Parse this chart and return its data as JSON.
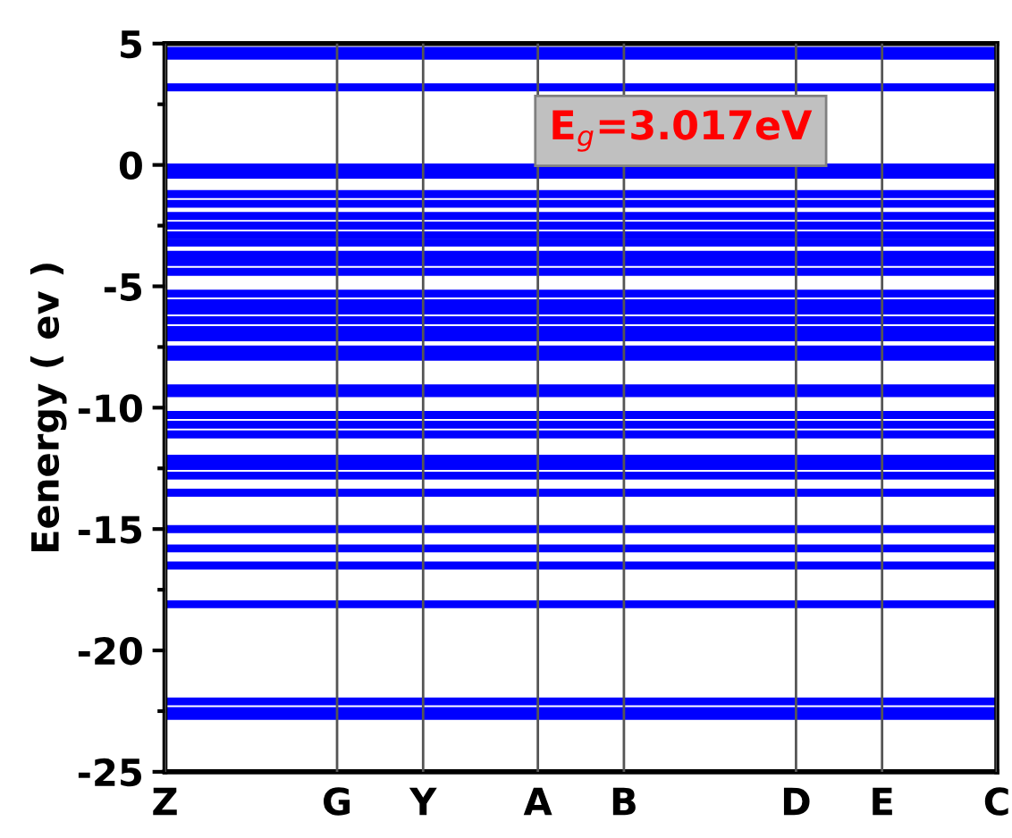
{
  "chart_data": {
    "type": "line",
    "ylabel": "Eenergy ( ev )",
    "annotations": [
      "E$_{g}$=3.017eV"
    ],
    "categories": [
      "Z",
      null,
      null,
      null,
      null,
      null,
      "G",
      null,
      null,
      "Y",
      null,
      null,
      null,
      "A",
      null,
      null,
      "B",
      null,
      null,
      null,
      null,
      null,
      "D",
      null,
      null,
      "E",
      null,
      null,
      null,
      "C"
    ],
    "ylim": [
      -25,
      5
    ],
    "yticks": [
      5,
      0,
      -5,
      -10,
      -15,
      -20,
      -25
    ],
    "grid": "x",
    "marker": "none",
    "line_style": "solid",
    "series": [
      {
        "color": "#0000ff",
        "values": [
          4.5,
          4.5,
          4.5,
          4.5,
          4.5,
          4.5,
          4.5,
          4.5,
          4.5,
          4.5,
          4.5,
          4.5,
          4.5,
          4.5,
          4.5,
          4.5,
          4.5,
          4.5,
          4.5,
          4.5,
          4.5,
          4.5,
          4.5,
          4.5,
          4.5,
          4.5,
          4.5,
          4.5,
          4.5,
          4.5
        ]
      },
      {
        "color": "#0000ff",
        "values": [
          4.7,
          4.7,
          4.7,
          4.7,
          4.7,
          4.7,
          4.7,
          4.7,
          4.7,
          4.7,
          4.7,
          4.7,
          4.7,
          4.7,
          4.7,
          4.7,
          4.7,
          4.7,
          4.7,
          4.7,
          4.7,
          4.7,
          4.7,
          4.7,
          4.7,
          4.7,
          4.7,
          4.7,
          4.7,
          4.7
        ]
      },
      {
        "color": "#0000ff",
        "values": [
          3.2,
          3.2,
          3.2,
          3.2,
          3.2,
          3.2,
          3.2,
          3.2,
          3.2,
          3.2,
          3.2,
          3.2,
          3.2,
          3.2,
          3.2,
          3.2,
          3.2,
          3.2,
          3.2,
          3.2,
          3.2,
          3.2,
          3.2,
          3.2,
          3.2,
          3.2,
          3.2,
          3.2,
          3.2,
          3.2
        ]
      },
      {
        "color": "#0000ff",
        "values": [
          -0.1,
          -0.1,
          -0.1,
          -0.1,
          -0.1,
          -0.1,
          -0.1,
          -0.1,
          -0.1,
          -0.1,
          -0.1,
          -0.1,
          -0.1,
          -0.1,
          -0.1,
          -0.1,
          -0.1,
          -0.1,
          -0.1,
          -0.1,
          -0.1,
          -0.1,
          -0.1,
          -0.1,
          -0.1,
          -0.1,
          -0.1,
          -0.1,
          -0.1,
          -0.1
        ]
      },
      {
        "color": "#0000ff",
        "values": [
          -0.4,
          -0.4,
          -0.4,
          -0.4,
          -0.4,
          -0.4,
          -0.4,
          -0.4,
          -0.4,
          -0.4,
          -0.4,
          -0.4,
          -0.4,
          -0.4,
          -0.4,
          -0.4,
          -0.4,
          -0.4,
          -0.4,
          -0.4,
          -0.4,
          -0.4,
          -0.4,
          -0.4,
          -0.4,
          -0.4,
          -0.4,
          -0.4,
          -0.4,
          -0.4
        ]
      },
      {
        "color": "#0000ff",
        "values": [
          -1.2,
          -1.2,
          -1.2,
          -1.2,
          -1.2,
          -1.2,
          -1.2,
          -1.2,
          -1.2,
          -1.2,
          -1.2,
          -1.2,
          -1.2,
          -1.2,
          -1.2,
          -1.2,
          -1.2,
          -1.2,
          -1.2,
          -1.2,
          -1.2,
          -1.2,
          -1.2,
          -1.2,
          -1.2,
          -1.2,
          -1.2,
          -1.2,
          -1.2,
          -1.2
        ]
      },
      {
        "color": "#0000ff",
        "values": [
          -1.6,
          -1.6,
          -1.6,
          -1.6,
          -1.6,
          -1.6,
          -1.6,
          -1.6,
          -1.6,
          -1.6,
          -1.6,
          -1.6,
          -1.6,
          -1.6,
          -1.6,
          -1.6,
          -1.6,
          -1.6,
          -1.6,
          -1.6,
          -1.6,
          -1.6,
          -1.6,
          -1.6,
          -1.6,
          -1.6,
          -1.6,
          -1.6,
          -1.6,
          -1.6
        ]
      },
      {
        "color": "#0000ff",
        "values": [
          -2.1,
          -2.1,
          -2.1,
          -2.1,
          -2.1,
          -2.1,
          -2.1,
          -2.1,
          -2.1,
          -2.1,
          -2.1,
          -2.1,
          -2.1,
          -2.1,
          -2.1,
          -2.1,
          -2.1,
          -2.1,
          -2.1,
          -2.1,
          -2.1,
          -2.1,
          -2.1,
          -2.1,
          -2.1,
          -2.1,
          -2.1,
          -2.1,
          -2.1,
          -2.1
        ]
      },
      {
        "color": "#0000ff",
        "values": [
          -2.5,
          -2.5,
          -2.5,
          -2.5,
          -2.5,
          -2.5,
          -2.5,
          -2.5,
          -2.5,
          -2.5,
          -2.5,
          -2.5,
          -2.5,
          -2.5,
          -2.5,
          -2.5,
          -2.5,
          -2.5,
          -2.5,
          -2.5,
          -2.5,
          -2.5,
          -2.5,
          -2.5,
          -2.5,
          -2.5,
          -2.5,
          -2.5,
          -2.5,
          -2.5
        ]
      },
      {
        "color": "#0000ff",
        "values": [
          -2.9,
          -2.9,
          -2.9,
          -2.9,
          -2.9,
          -2.9,
          -2.9,
          -2.9,
          -2.9,
          -2.9,
          -2.9,
          -2.9,
          -2.9,
          -2.9,
          -2.9,
          -2.9,
          -2.9,
          -2.9,
          -2.9,
          -2.9,
          -2.9,
          -2.9,
          -2.9,
          -2.9,
          -2.9,
          -2.9,
          -2.9,
          -2.9,
          -2.9,
          -2.9
        ]
      },
      {
        "color": "#0000ff",
        "values": [
          -3.2,
          -3.2,
          -3.2,
          -3.2,
          -3.2,
          -3.2,
          -3.2,
          -3.2,
          -3.2,
          -3.2,
          -3.2,
          -3.2,
          -3.2,
          -3.2,
          -3.2,
          -3.2,
          -3.2,
          -3.2,
          -3.2,
          -3.2,
          -3.2,
          -3.2,
          -3.2,
          -3.2,
          -3.2,
          -3.2,
          -3.2,
          -3.2,
          -3.2,
          -3.2
        ]
      },
      {
        "color": "#0000ff",
        "values": [
          -3.7,
          -3.7,
          -3.7,
          -3.7,
          -3.7,
          -3.7,
          -3.7,
          -3.7,
          -3.7,
          -3.7,
          -3.7,
          -3.7,
          -3.7,
          -3.7,
          -3.7,
          -3.7,
          -3.7,
          -3.7,
          -3.7,
          -3.7,
          -3.7,
          -3.7,
          -3.7,
          -3.7,
          -3.7,
          -3.7,
          -3.7,
          -3.7,
          -3.7,
          -3.7
        ]
      },
      {
        "color": "#0000ff",
        "values": [
          -4.0,
          -4.0,
          -4.0,
          -4.0,
          -4.0,
          -4.0,
          -4.0,
          -4.0,
          -4.0,
          -4.0,
          -4.0,
          -4.0,
          -4.0,
          -4.0,
          -4.0,
          -4.0,
          -4.0,
          -4.0,
          -4.0,
          -4.0,
          -4.0,
          -4.0,
          -4.0,
          -4.0,
          -4.0,
          -4.0,
          -4.0,
          -4.0,
          -4.0,
          -4.0
        ]
      },
      {
        "color": "#0000ff",
        "values": [
          -4.4,
          -4.4,
          -4.4,
          -4.4,
          -4.4,
          -4.4,
          -4.4,
          -4.4,
          -4.4,
          -4.4,
          -4.4,
          -4.4,
          -4.4,
          -4.4,
          -4.4,
          -4.4,
          -4.4,
          -4.4,
          -4.4,
          -4.4,
          -4.4,
          -4.4,
          -4.4,
          -4.4,
          -4.4,
          -4.4,
          -4.4,
          -4.4,
          -4.4,
          -4.4
        ]
      },
      {
        "color": "#0000ff",
        "values": [
          -5.3,
          -5.3,
          -5.3,
          -5.3,
          -5.3,
          -5.3,
          -5.3,
          -5.3,
          -5.3,
          -5.3,
          -5.3,
          -5.3,
          -5.3,
          -5.3,
          -5.3,
          -5.3,
          -5.3,
          -5.3,
          -5.3,
          -5.3,
          -5.3,
          -5.3,
          -5.3,
          -5.3,
          -5.3,
          -5.3,
          -5.3,
          -5.3,
          -5.3,
          -5.3
        ]
      },
      {
        "color": "#0000ff",
        "values": [
          -5.7,
          -5.7,
          -5.7,
          -5.7,
          -5.7,
          -5.7,
          -5.7,
          -5.7,
          -5.7,
          -5.7,
          -5.7,
          -5.7,
          -5.7,
          -5.7,
          -5.7,
          -5.7,
          -5.7,
          -5.7,
          -5.7,
          -5.7,
          -5.7,
          -5.7,
          -5.7,
          -5.7,
          -5.7,
          -5.7,
          -5.7,
          -5.7,
          -5.7,
          -5.7
        ]
      },
      {
        "color": "#0000ff",
        "values": [
          -6.0,
          -6.0,
          -6.0,
          -6.0,
          -6.0,
          -6.0,
          -6.0,
          -6.0,
          -6.0,
          -6.0,
          -6.0,
          -6.0,
          -6.0,
          -6.0,
          -6.0,
          -6.0,
          -6.0,
          -6.0,
          -6.0,
          -6.0,
          -6.0,
          -6.0,
          -6.0,
          -6.0,
          -6.0,
          -6.0,
          -6.0,
          -6.0,
          -6.0,
          -6.0
        ]
      },
      {
        "color": "#0000ff",
        "values": [
          -6.4,
          -6.4,
          -6.4,
          -6.4,
          -6.4,
          -6.4,
          -6.4,
          -6.4,
          -6.4,
          -6.4,
          -6.4,
          -6.4,
          -6.4,
          -6.4,
          -6.4,
          -6.4,
          -6.4,
          -6.4,
          -6.4,
          -6.4,
          -6.4,
          -6.4,
          -6.4,
          -6.4,
          -6.4,
          -6.4,
          -6.4,
          -6.4,
          -6.4,
          -6.4
        ]
      },
      {
        "color": "#0000ff",
        "values": [
          -6.8,
          -6.8,
          -6.8,
          -6.8,
          -6.8,
          -6.8,
          -6.8,
          -6.8,
          -6.8,
          -6.8,
          -6.8,
          -6.8,
          -6.8,
          -6.8,
          -6.8,
          -6.8,
          -6.8,
          -6.8,
          -6.8,
          -6.8,
          -6.8,
          -6.8,
          -6.8,
          -6.8,
          -6.8,
          -6.8,
          -6.8,
          -6.8,
          -6.8,
          -6.8
        ]
      },
      {
        "color": "#0000ff",
        "values": [
          -7.1,
          -7.1,
          -7.1,
          -7.1,
          -7.1,
          -7.1,
          -7.1,
          -7.1,
          -7.1,
          -7.1,
          -7.1,
          -7.1,
          -7.1,
          -7.1,
          -7.1,
          -7.1,
          -7.1,
          -7.1,
          -7.1,
          -7.1,
          -7.1,
          -7.1,
          -7.1,
          -7.1,
          -7.1,
          -7.1,
          -7.1,
          -7.1,
          -7.1,
          -7.1
        ]
      },
      {
        "color": "#0000ff",
        "values": [
          -7.6,
          -7.6,
          -7.6,
          -7.6,
          -7.6,
          -7.6,
          -7.6,
          -7.6,
          -7.6,
          -7.6,
          -7.6,
          -7.6,
          -7.6,
          -7.6,
          -7.6,
          -7.6,
          -7.6,
          -7.6,
          -7.6,
          -7.6,
          -7.6,
          -7.6,
          -7.6,
          -7.6,
          -7.6,
          -7.6,
          -7.6,
          -7.6,
          -7.6,
          -7.6
        ]
      },
      {
        "color": "#0000ff",
        "values": [
          -7.9,
          -7.9,
          -7.9,
          -7.9,
          -7.9,
          -7.9,
          -7.9,
          -7.9,
          -7.9,
          -7.9,
          -7.9,
          -7.9,
          -7.9,
          -7.9,
          -7.9,
          -7.9,
          -7.9,
          -7.9,
          -7.9,
          -7.9,
          -7.9,
          -7.9,
          -7.9,
          -7.9,
          -7.9,
          -7.9,
          -7.9,
          -7.9,
          -7.9,
          -7.9
        ]
      },
      {
        "color": "#0000ff",
        "values": [
          -9.2,
          -9.2,
          -9.2,
          -9.2,
          -9.2,
          -9.2,
          -9.2,
          -9.2,
          -9.2,
          -9.2,
          -9.2,
          -9.2,
          -9.2,
          -9.2,
          -9.2,
          -9.2,
          -9.2,
          -9.2,
          -9.2,
          -9.2,
          -9.2,
          -9.2,
          -9.2,
          -9.2,
          -9.2,
          -9.2,
          -9.2,
          -9.2,
          -9.2,
          -9.2
        ]
      },
      {
        "color": "#0000ff",
        "values": [
          -9.4,
          -9.4,
          -9.4,
          -9.4,
          -9.4,
          -9.4,
          -9.4,
          -9.4,
          -9.4,
          -9.4,
          -9.4,
          -9.4,
          -9.4,
          -9.4,
          -9.4,
          -9.4,
          -9.4,
          -9.4,
          -9.4,
          -9.4,
          -9.4,
          -9.4,
          -9.4,
          -9.4,
          -9.4,
          -9.4,
          -9.4,
          -9.4,
          -9.4,
          -9.4
        ]
      },
      {
        "color": "#0000ff",
        "values": [
          -10.3,
          -10.3,
          -10.3,
          -10.3,
          -10.3,
          -10.3,
          -10.3,
          -10.3,
          -10.3,
          -10.3,
          -10.3,
          -10.3,
          -10.3,
          -10.3,
          -10.3,
          -10.3,
          -10.3,
          -10.3,
          -10.3,
          -10.3,
          -10.3,
          -10.3,
          -10.3,
          -10.3,
          -10.3,
          -10.3,
          -10.3,
          -10.3,
          -10.3,
          -10.3
        ]
      },
      {
        "color": "#0000ff",
        "values": [
          -10.7,
          -10.7,
          -10.7,
          -10.7,
          -10.7,
          -10.7,
          -10.7,
          -10.7,
          -10.7,
          -10.7,
          -10.7,
          -10.7,
          -10.7,
          -10.7,
          -10.7,
          -10.7,
          -10.7,
          -10.7,
          -10.7,
          -10.7,
          -10.7,
          -10.7,
          -10.7,
          -10.7,
          -10.7,
          -10.7,
          -10.7,
          -10.7,
          -10.7,
          -10.7
        ]
      },
      {
        "color": "#0000ff",
        "values": [
          -11.1,
          -11.1,
          -11.1,
          -11.1,
          -11.1,
          -11.1,
          -11.1,
          -11.1,
          -11.1,
          -11.1,
          -11.1,
          -11.1,
          -11.1,
          -11.1,
          -11.1,
          -11.1,
          -11.1,
          -11.1,
          -11.1,
          -11.1,
          -11.1,
          -11.1,
          -11.1,
          -11.1,
          -11.1,
          -11.1,
          -11.1,
          -11.1,
          -11.1,
          -11.1
        ]
      },
      {
        "color": "#0000ff",
        "values": [
          -12.1,
          -12.1,
          -12.1,
          -12.1,
          -12.1,
          -12.1,
          -12.1,
          -12.1,
          -12.1,
          -12.1,
          -12.1,
          -12.1,
          -12.1,
          -12.1,
          -12.1,
          -12.1,
          -12.1,
          -12.1,
          -12.1,
          -12.1,
          -12.1,
          -12.1,
          -12.1,
          -12.1,
          -12.1,
          -12.1,
          -12.1,
          -12.1,
          -12.1,
          -12.1
        ]
      },
      {
        "color": "#0000ff",
        "values": [
          -12.4,
          -12.4,
          -12.4,
          -12.4,
          -12.4,
          -12.4,
          -12.4,
          -12.4,
          -12.4,
          -12.4,
          -12.4,
          -12.4,
          -12.4,
          -12.4,
          -12.4,
          -12.4,
          -12.4,
          -12.4,
          -12.4,
          -12.4,
          -12.4,
          -12.4,
          -12.4,
          -12.4,
          -12.4,
          -12.4,
          -12.4,
          -12.4,
          -12.4,
          -12.4
        ]
      },
      {
        "color": "#0000ff",
        "values": [
          -12.8,
          -12.8,
          -12.8,
          -12.8,
          -12.8,
          -12.8,
          -12.8,
          -12.8,
          -12.8,
          -12.8,
          -12.8,
          -12.8,
          -12.8,
          -12.8,
          -12.8,
          -12.8,
          -12.8,
          -12.8,
          -12.8,
          -12.8,
          -12.8,
          -12.8,
          -12.8,
          -12.8,
          -12.8,
          -12.8,
          -12.8,
          -12.8,
          -12.8,
          -12.8
        ]
      },
      {
        "color": "#0000ff",
        "values": [
          -13.5,
          -13.5,
          -13.5,
          -13.5,
          -13.5,
          -13.5,
          -13.5,
          -13.5,
          -13.5,
          -13.5,
          -13.5,
          -13.5,
          -13.5,
          -13.5,
          -13.5,
          -13.5,
          -13.5,
          -13.5,
          -13.5,
          -13.5,
          -13.5,
          -13.5,
          -13.5,
          -13.5,
          -13.5,
          -13.5,
          -13.5,
          -13.5,
          -13.5,
          -13.5
        ]
      },
      {
        "color": "#0000ff",
        "values": [
          -15.0,
          -15.0,
          -15.0,
          -15.0,
          -15.0,
          -15.0,
          -15.0,
          -15.0,
          -15.0,
          -15.0,
          -15.0,
          -15.0,
          -15.0,
          -15.0,
          -15.0,
          -15.0,
          -15.0,
          -15.0,
          -15.0,
          -15.0,
          -15.0,
          -15.0,
          -15.0,
          -15.0,
          -15.0,
          -15.0,
          -15.0,
          -15.0,
          -15.0,
          -15.0
        ]
      },
      {
        "color": "#0000ff",
        "values": [
          -15.8,
          -15.8,
          -15.8,
          -15.8,
          -15.8,
          -15.8,
          -15.8,
          -15.8,
          -15.8,
          -15.8,
          -15.8,
          -15.8,
          -15.8,
          -15.8,
          -15.8,
          -15.8,
          -15.8,
          -15.8,
          -15.8,
          -15.8,
          -15.8,
          -15.8,
          -15.8,
          -15.8,
          -15.8,
          -15.8,
          -15.8,
          -15.8,
          -15.8,
          -15.8
        ]
      },
      {
        "color": "#0000ff",
        "values": [
          -16.5,
          -16.5,
          -16.5,
          -16.5,
          -16.5,
          -16.5,
          -16.5,
          -16.5,
          -16.5,
          -16.5,
          -16.5,
          -16.5,
          -16.5,
          -16.5,
          -16.5,
          -16.5,
          -16.5,
          -16.5,
          -16.5,
          -16.5,
          -16.5,
          -16.5,
          -16.5,
          -16.5,
          -16.5,
          -16.5,
          -16.5,
          -16.5,
          -16.5,
          -16.5
        ]
      },
      {
        "color": "#0000ff",
        "values": [
          -18.1,
          -18.1,
          -18.1,
          -18.1,
          -18.1,
          -18.1,
          -18.1,
          -18.1,
          -18.1,
          -18.1,
          -18.1,
          -18.1,
          -18.1,
          -18.1,
          -18.1,
          -18.1,
          -18.1,
          -18.1,
          -18.1,
          -18.1,
          -18.1,
          -18.1,
          -18.1,
          -18.1,
          -18.1,
          -18.1,
          -18.1,
          -18.1,
          -18.1,
          -18.1
        ]
      },
      {
        "color": "#0000ff",
        "values": [
          -22.1,
          -22.1,
          -22.1,
          -22.1,
          -22.1,
          -22.1,
          -22.1,
          -22.1,
          -22.1,
          -22.1,
          -22.1,
          -22.1,
          -22.1,
          -22.1,
          -22.1,
          -22.1,
          -22.1,
          -22.1,
          -22.1,
          -22.1,
          -22.1,
          -22.1,
          -22.1,
          -22.1,
          -22.1,
          -22.1,
          -22.1,
          -22.1,
          -22.1,
          -22.1
        ]
      },
      {
        "color": "#0000ff",
        "values": [
          -22.5,
          -22.5,
          -22.5,
          -22.5,
          -22.5,
          -22.5,
          -22.5,
          -22.5,
          -22.5,
          -22.5,
          -22.5,
          -22.5,
          -22.5,
          -22.5,
          -22.5,
          -22.5,
          -22.5,
          -22.5,
          -22.5,
          -22.5,
          -22.5,
          -22.5,
          -22.5,
          -22.5,
          -22.5,
          -22.5,
          -22.5,
          -22.5,
          -22.5,
          -22.5
        ]
      },
      {
        "color": "#0000ff",
        "values": [
          -22.7,
          -22.7,
          -22.7,
          -22.7,
          -22.7,
          -22.7,
          -22.7,
          -22.7,
          -22.7,
          -22.7,
          -22.7,
          -22.7,
          -22.7,
          -22.7,
          -22.7,
          -22.7,
          -22.7,
          -22.7,
          -22.7,
          -22.7,
          -22.7,
          -22.7,
          -22.7,
          -22.7,
          -22.7,
          -22.7,
          -22.7,
          -22.7,
          -22.7,
          -22.7
        ]
      }
    ]
  }
}
